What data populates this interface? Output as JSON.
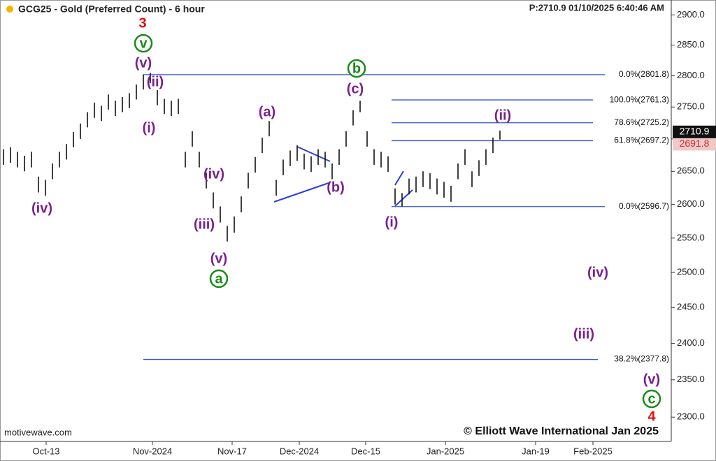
{
  "chart_data": {
    "type": "range_bar",
    "title": "GCG25 - Gold (Preferred Count) - 6 hour",
    "header": "P:2710.9  01/10/2025 6:40:46 AM",
    "source": "motivewave.com",
    "copyright": "© Elliott Wave International Jan 2025",
    "log_scale": true,
    "color": "#111111",
    "ylim": [
      2268,
      2925
    ],
    "yticks": [
      {
        "value": 2300,
        "label": "2300.0"
      },
      {
        "value": 2350,
        "label": "2350.0"
      },
      {
        "value": 2400,
        "label": "2400.0"
      },
      {
        "value": 2450,
        "label": "2450.0"
      },
      {
        "value": 2500,
        "label": "2500.0"
      },
      {
        "value": 2550,
        "label": "2550.0"
      },
      {
        "value": 2600,
        "label": "2600.0"
      },
      {
        "value": 2650,
        "label": "2650.0"
      },
      {
        "value": 2700,
        "label": "2700.0"
      },
      {
        "value": 2750,
        "label": "2750.0"
      },
      {
        "value": 2800,
        "label": "2800.0"
      },
      {
        "value": 2850,
        "label": "2850.0"
      },
      {
        "value": 2900,
        "label": "2900.0"
      }
    ],
    "xlim": [
      0,
      96
    ],
    "xticks": [
      {
        "value": 6.6,
        "label": "Oct-13"
      },
      {
        "value": 21.8,
        "label": "Nov-2024"
      },
      {
        "value": 33.2,
        "label": "Nov-17"
      },
      {
        "value": 42.8,
        "label": "Dec-2024"
      },
      {
        "value": 52.3,
        "label": "Dec-15"
      },
      {
        "value": 63.7,
        "label": "Jan-2025"
      },
      {
        "value": 76.6,
        "label": "Jan-19"
      },
      {
        "value": 84.8,
        "label": "Feb-2025"
      }
    ],
    "high": [
      2684,
      2687,
      2680,
      2674,
      2680,
      2642,
      2637,
      2662,
      2680,
      2692,
      2711,
      2724,
      2742,
      2757,
      2752,
      2770,
      2760,
      2766,
      2772,
      2786,
      2802,
      2805,
      2777,
      2763,
      2760,
      2763,
      2680,
      2712,
      2680,
      2648,
      2618,
      2597,
      2568,
      2582,
      2612,
      2648,
      2672,
      2702,
      2728,
      2637,
      2668,
      2682,
      2690,
      2677,
      2673,
      2684,
      2680,
      2662,
      2684,
      2712,
      2745,
      2760,
      2712,
      2684,
      2680,
      2673,
      2624,
      2617,
      2639,
      2642,
      2650,
      2647,
      2639,
      2634,
      2628,
      2662,
      2684,
      2650,
      2667,
      2684,
      2702,
      2713
    ],
    "low": [
      2660,
      2663,
      2656,
      2650,
      2656,
      2618,
      2613,
      2638,
      2656,
      2668,
      2687,
      2700,
      2718,
      2733,
      2728,
      2746,
      2736,
      2742,
      2748,
      2762,
      2778,
      2788,
      2753,
      2739,
      2736,
      2739,
      2656,
      2688,
      2656,
      2624,
      2594,
      2573,
      2545,
      2558,
      2588,
      2624,
      2648,
      2678,
      2704,
      2613,
      2644,
      2658,
      2666,
      2653,
      2649,
      2660,
      2656,
      2638,
      2660,
      2688,
      2721,
      2742,
      2688,
      2660,
      2656,
      2649,
      2600,
      2597,
      2615,
      2618,
      2626,
      2623,
      2615,
      2610,
      2604,
      2638,
      2660,
      2626,
      2643,
      2660,
      2678,
      2699
    ],
    "last_price": 2710.9,
    "indicator_price": 2691.8,
    "levels": [
      {
        "value": 2801.8,
        "label": "0.0%(2801.8)"
      },
      {
        "value": 2761.3,
        "label": "100.0%(2761.3)"
      },
      {
        "value": 2725.2,
        "label": "78.6%(2725.2)"
      },
      {
        "value": 2697.2,
        "label": "61.8%(2697.2)"
      },
      {
        "value": 2596.7,
        "label": "0.0%(2596.7)"
      },
      {
        "value": 2377.8,
        "label": "38.2%(2377.8)"
      }
    ],
    "level_color": "#3355cc",
    "wave_labels": [
      {
        "text": "3",
        "color": "#e01010"
      },
      {
        "text": "v",
        "color": "#1a8a1a",
        "circled": true
      },
      {
        "text": "(v)",
        "color": "#7a1f8f"
      },
      {
        "text": "(ii)",
        "color": "#7a1f8f"
      },
      {
        "text": "(i)",
        "color": "#7a1f8f"
      },
      {
        "text": "(iv)",
        "color": "#7a1f8f"
      },
      {
        "text": "(iv)",
        "color": "#7a1f8f"
      },
      {
        "text": "(iii)",
        "color": "#7a1f8f"
      },
      {
        "text": "(v)",
        "color": "#7a1f8f"
      },
      {
        "text": "a",
        "color": "#1a8a1a",
        "circled": true
      },
      {
        "text": "(a)",
        "color": "#7a1f8f"
      },
      {
        "text": "(b)",
        "color": "#7a1f8f"
      },
      {
        "text": "b",
        "color": "#1a8a1a",
        "circled": true
      },
      {
        "text": "(c)",
        "color": "#7a1f8f"
      },
      {
        "text": "(i)",
        "color": "#7a1f8f"
      },
      {
        "text": "(ii)",
        "color": "#7a1f8f"
      },
      {
        "text": "(iv)",
        "color": "#7a1f8f"
      },
      {
        "text": "(iii)",
        "color": "#7a1f8f"
      },
      {
        "text": "(v)",
        "color": "#7a1f8f"
      },
      {
        "text": "c",
        "color": "#1a8a1a",
        "circled": true
      },
      {
        "text": "4",
        "color": "#e01010"
      }
    ]
  }
}
